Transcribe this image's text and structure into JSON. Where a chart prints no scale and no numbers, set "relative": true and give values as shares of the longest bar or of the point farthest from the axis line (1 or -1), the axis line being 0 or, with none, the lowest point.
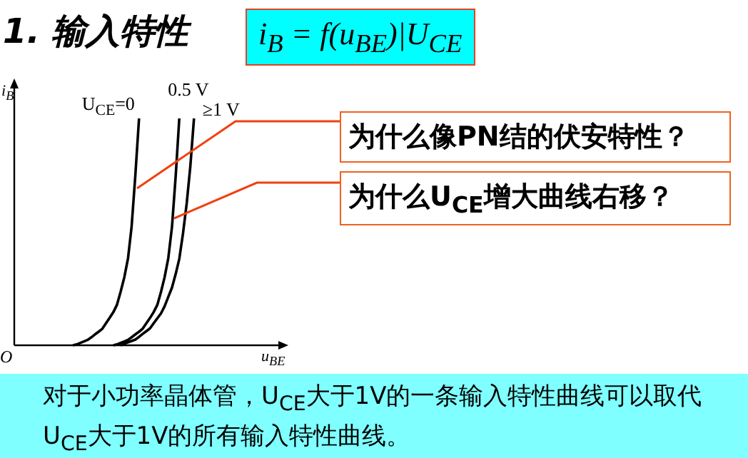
{
  "chart_data": {
    "type": "line",
    "title": "1. 输入特性",
    "subtitle": "i$_{B}$ = f(u$_{BE}$)|U$_{CE}$",
    "xlabel": "u$_{BE}$",
    "ylabel": "i$_{B}$",
    "relative": true,
    "marker": "none",
    "line_style": "solid",
    "categories": [
      null,
      null,
      null,
      null,
      null,
      null,
      null,
      null,
      null,
      null,
      null,
      null,
      null,
      null,
      null,
      null,
      null,
      null,
      null,
      null,
      null,
      null,
      null,
      null,
      null,
      null,
      null,
      null,
      null,
      null,
      null,
      null,
      null,
      null,
      null,
      null,
      null,
      null,
      null,
      null,
      null,
      null,
      null,
      null,
      null,
      null,
      null,
      null,
      null,
      null,
      null,
      null,
      null,
      null,
      null,
      null,
      null,
      null,
      null,
      null,
      null,
      null,
      null,
      null,
      null,
      null,
      null,
      null,
      null,
      null,
      null,
      null,
      null
    ],
    "series": [
      {
        "name": "U$_{CE}$=0",
        "color": "#000000",
        "values": [
          null,
          null,
          null,
          null,
          null,
          null,
          null,
          null,
          null,
          null,
          null,
          null,
          null,
          null,
          null,
          null,
          0,
          0.004,
          0.011,
          0.017,
          0.024,
          0.035,
          0.048,
          0.06,
          0.073,
          0.097,
          0.121,
          0.146,
          0.178,
          0.236,
          0.3,
          0.384,
          0.523,
          0.748,
          1,
          null,
          null,
          null,
          null,
          null,
          null,
          null,
          null,
          null,
          null,
          null,
          null,
          null,
          null,
          null,
          null,
          null,
          null,
          null,
          null,
          null,
          null,
          null,
          null,
          null,
          null,
          null,
          null,
          null,
          null,
          null,
          null,
          null,
          null,
          null,
          null,
          null,
          null
        ]
      },
      {
        "name": "0.5 V",
        "color": "#000000",
        "values": [
          null,
          null,
          null,
          null,
          null,
          null,
          null,
          null,
          null,
          null,
          null,
          null,
          null,
          null,
          null,
          null,
          null,
          null,
          null,
          null,
          null,
          null,
          null,
          null,
          null,
          null,
          null,
          0,
          0.004,
          0.011,
          0.017,
          0.024,
          0.035,
          0.048,
          0.06,
          0.073,
          0.097,
          0.121,
          0.146,
          0.178,
          0.236,
          0.3,
          0.384,
          0.523,
          0.748,
          1,
          null,
          null,
          null,
          null,
          null,
          null,
          null,
          null,
          null,
          null,
          null,
          null,
          null,
          null,
          null,
          null,
          null,
          null,
          null,
          null,
          null,
          null,
          null,
          null,
          null,
          null,
          null
        ]
      },
      {
        "name": "≥1 V",
        "color": "#000000",
        "values": [
          null,
          null,
          null,
          null,
          null,
          null,
          null,
          null,
          null,
          null,
          null,
          null,
          null,
          null,
          null,
          null,
          null,
          null,
          null,
          null,
          null,
          null,
          null,
          null,
          null,
          null,
          null,
          null,
          null,
          0,
          0.007,
          0.013,
          0.019,
          0.025,
          0.037,
          0.05,
          0.062,
          0.075,
          0.097,
          0.119,
          0.141,
          0.172,
          0.213,
          0.255,
          0.315,
          0.381,
          0.493,
          0.626,
          0.787,
          1,
          null,
          null,
          null,
          null,
          null,
          null,
          null,
          null,
          null,
          null,
          null,
          null,
          null,
          null,
          null,
          null,
          null,
          null,
          null,
          null,
          null,
          null,
          null
        ]
      }
    ],
    "annotations": [
      "为什么像PN结的伏安特性？",
      "为什么U$_{CE}$增大曲线右移？",
      "O",
      "对于小功率晶体管，U$_{CE}$大于1V的一条输入特性曲线可以取代U$_{CE}$大于1V的所有输入特性曲线。"
    ]
  }
}
